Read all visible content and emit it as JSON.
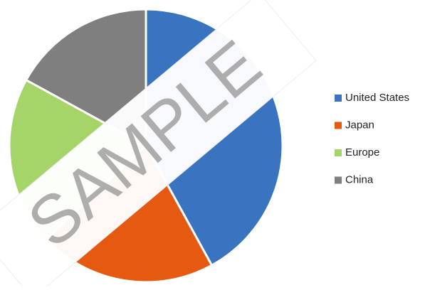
{
  "chart_data": {
    "type": "pie",
    "categories": [
      "United States",
      "Japan",
      "Europe",
      "China"
    ],
    "values": [
      42,
      21,
      20,
      17
    ],
    "colors": [
      "#3a74c0",
      "#e55a10",
      "#a5d468",
      "#7f7f7f"
    ],
    "legend": "right",
    "watermark": "SAMPLE"
  }
}
